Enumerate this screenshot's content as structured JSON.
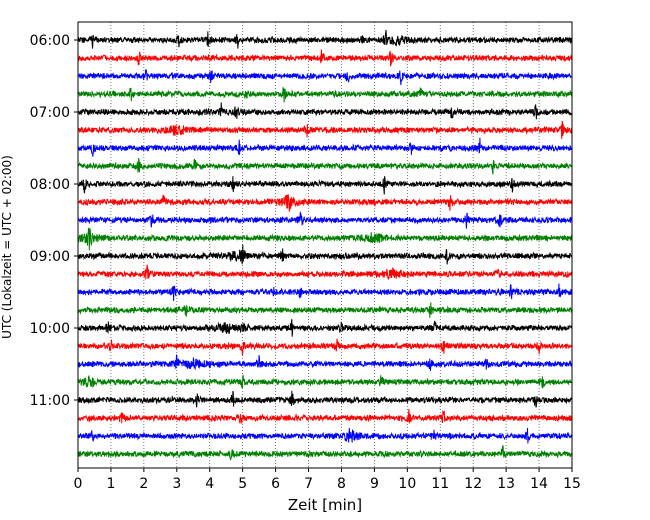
{
  "chart_data": {
    "type": "line",
    "title": "",
    "xlabel": "Zeit  [min]",
    "ylabel": "UTC (Lokalzeit = UTC + 02:00)",
    "xlim": [
      0,
      15
    ],
    "x_ticks": [
      "0",
      "1",
      "2",
      "3",
      "4",
      "5",
      "6",
      "7",
      "8",
      "9",
      "10",
      "11",
      "12",
      "13",
      "14",
      "15"
    ],
    "y_tick_labels": [
      "06:00",
      "07:00",
      "08:00",
      "09:00",
      "10:00",
      "11:00"
    ],
    "trace_start_times_utc": [
      "06:00",
      "06:15",
      "06:30",
      "06:45",
      "07:00",
      "07:15",
      "07:30",
      "07:45",
      "08:00",
      "08:15",
      "08:30",
      "08:45",
      "09:00",
      "09:15",
      "09:30",
      "09:45",
      "10:00",
      "10:15",
      "10:30",
      "10:45",
      "11:00",
      "11:15",
      "11:30",
      "11:45"
    ],
    "trace_colors": [
      "#000000",
      "#ff0000",
      "#0000ff",
      "#008000"
    ],
    "grid": {
      "vertical": true,
      "style": "dotted"
    },
    "legend": "none",
    "traces": [
      {
        "events": [
          0.45,
          3.05,
          3.95,
          4.85,
          8.6,
          9.35
        ],
        "bursts": [
          9.7
        ]
      },
      {
        "events": [
          1.85,
          7.4,
          9.5
        ],
        "bursts": []
      },
      {
        "events": [
          2.05,
          4.05,
          8.2,
          9.8
        ],
        "bursts": []
      },
      {
        "events": [
          1.6,
          5.1,
          6.25,
          10.4
        ],
        "bursts": []
      },
      {
        "events": [
          4.35,
          4.8,
          11.35,
          13.9
        ],
        "bursts": []
      },
      {
        "events": [
          6.95,
          14.7
        ],
        "bursts": [
          3.0
        ]
      },
      {
        "events": [
          0.45,
          4.9,
          10.1,
          12.2
        ],
        "bursts": []
      },
      {
        "events": [
          1.85,
          3.55,
          12.6
        ],
        "bursts": []
      },
      {
        "events": [
          0.2,
          4.7,
          9.3,
          13.2
        ],
        "bursts": []
      },
      {
        "events": [
          2.6,
          6.4,
          11.3
        ],
        "bursts": [
          6.35
        ]
      },
      {
        "events": [
          2.25,
          6.75,
          11.8,
          12.8
        ],
        "bursts": []
      },
      {
        "events": [
          0.35
        ],
        "bursts": [
          0.3,
          9.0
        ]
      },
      {
        "events": [
          5.0,
          6.2,
          11.2
        ],
        "bursts": [
          4.8
        ]
      },
      {
        "events": [
          2.1,
          12.75
        ],
        "bursts": [
          9.5
        ]
      },
      {
        "events": [
          2.9,
          5.95,
          6.75,
          13.15,
          14.6
        ],
        "bursts": []
      },
      {
        "events": [
          3.3,
          10.7
        ],
        "bursts": []
      },
      {
        "events": [
          0.9,
          5.0,
          6.5,
          8.0,
          10.85
        ],
        "bursts": [
          4.5
        ]
      },
      {
        "events": [
          1.0,
          5.0,
          7.85,
          11.1,
          14.0
        ],
        "bursts": []
      },
      {
        "events": [
          3.0,
          5.5,
          10.7,
          12.4
        ],
        "bursts": [
          3.5
        ]
      },
      {
        "events": [
          5.0,
          9.2,
          14.1
        ],
        "bursts": [
          0.3
        ]
      },
      {
        "events": [
          3.6,
          4.7,
          6.5,
          13.9
        ],
        "bursts": []
      },
      {
        "events": [
          1.35,
          4.95,
          10.05,
          11.1
        ],
        "bursts": []
      },
      {
        "events": [
          0.45,
          8.25,
          10.8,
          13.65
        ],
        "bursts": [
          8.3
        ]
      },
      {
        "events": [
          4.65,
          12.9
        ],
        "bursts": []
      }
    ]
  }
}
